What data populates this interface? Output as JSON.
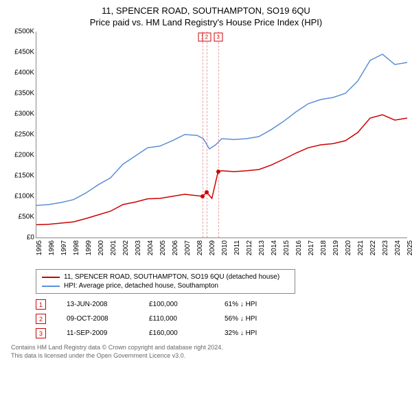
{
  "chart": {
    "type": "line",
    "title_main": "11, SPENCER ROAD, SOUTHAMPTON, SO19 6QU",
    "title_sub": "Price paid vs. HM Land Registry's House Price Index (HPI)",
    "title_fontsize": 13,
    "background_color": "#ffffff",
    "axis_color": "#888888",
    "label_fontsize": 10,
    "ylim": [
      0,
      500000
    ],
    "ytick_step": 50000,
    "y_ticks": [
      "£0",
      "£50K",
      "£100K",
      "£150K",
      "£200K",
      "£250K",
      "£300K",
      "£350K",
      "£400K",
      "£450K",
      "£500K"
    ],
    "xlim": [
      1995,
      2025
    ],
    "x_ticks": [
      "1995",
      "1996",
      "1997",
      "1998",
      "1999",
      "2000",
      "2001",
      "2002",
      "2003",
      "2004",
      "2005",
      "2006",
      "2007",
      "2008",
      "2009",
      "2010",
      "2011",
      "2012",
      "2013",
      "2014",
      "2015",
      "2016",
      "2017",
      "2018",
      "2019",
      "2020",
      "2021",
      "2022",
      "2023",
      "2024",
      "2025"
    ],
    "series": {
      "property": {
        "label": "11, SPENCER ROAD, SOUTHAMPTON, SO19 6QU (detached house)",
        "color": "#cc0000",
        "line_width": 1.5,
        "points": [
          [
            1995,
            31000
          ],
          [
            1996,
            32000
          ],
          [
            1997,
            35000
          ],
          [
            1998,
            38000
          ],
          [
            1999,
            46000
          ],
          [
            2000,
            55000
          ],
          [
            2001,
            64000
          ],
          [
            2002,
            80000
          ],
          [
            2003,
            86000
          ],
          [
            2004,
            94000
          ],
          [
            2005,
            95000
          ],
          [
            2006,
            100000
          ],
          [
            2007,
            105000
          ],
          [
            2008.45,
            100000
          ],
          [
            2008.77,
            110000
          ],
          [
            2009.2,
            95000
          ],
          [
            2009.7,
            160000
          ],
          [
            2010,
            162000
          ],
          [
            2011,
            160000
          ],
          [
            2012,
            162000
          ],
          [
            2013,
            165000
          ],
          [
            2014,
            176000
          ],
          [
            2015,
            190000
          ],
          [
            2016,
            205000
          ],
          [
            2017,
            218000
          ],
          [
            2018,
            225000
          ],
          [
            2019,
            228000
          ],
          [
            2020,
            235000
          ],
          [
            2021,
            255000
          ],
          [
            2022,
            290000
          ],
          [
            2023,
            298000
          ],
          [
            2024,
            285000
          ],
          [
            2025,
            290000
          ]
        ]
      },
      "hpi": {
        "label": "HPI: Average price, detached house, Southampton",
        "color": "#5b8fd6",
        "line_width": 1.5,
        "points": [
          [
            1995,
            78000
          ],
          [
            1996,
            80000
          ],
          [
            1997,
            85000
          ],
          [
            1998,
            92000
          ],
          [
            1999,
            108000
          ],
          [
            2000,
            128000
          ],
          [
            2001,
            145000
          ],
          [
            2002,
            178000
          ],
          [
            2003,
            198000
          ],
          [
            2004,
            218000
          ],
          [
            2005,
            222000
          ],
          [
            2006,
            235000
          ],
          [
            2007,
            250000
          ],
          [
            2008,
            248000
          ],
          [
            2008.5,
            240000
          ],
          [
            2009,
            215000
          ],
          [
            2009.5,
            225000
          ],
          [
            2010,
            240000
          ],
          [
            2011,
            238000
          ],
          [
            2012,
            240000
          ],
          [
            2013,
            245000
          ],
          [
            2014,
            262000
          ],
          [
            2015,
            282000
          ],
          [
            2016,
            305000
          ],
          [
            2017,
            325000
          ],
          [
            2018,
            335000
          ],
          [
            2019,
            340000
          ],
          [
            2020,
            350000
          ],
          [
            2021,
            380000
          ],
          [
            2022,
            430000
          ],
          [
            2023,
            445000
          ],
          [
            2024,
            420000
          ],
          [
            2025,
            425000
          ]
        ]
      }
    },
    "sale_markers": [
      {
        "n": "1",
        "date": "13-JUN-2008",
        "price": "£100,000",
        "delta": "61% ↓ HPI",
        "x": 2008.45,
        "y": 100000
      },
      {
        "n": "2",
        "date": "09-OCT-2008",
        "price": "£110,000",
        "delta": "56% ↓ HPI",
        "x": 2008.77,
        "y": 110000
      },
      {
        "n": "3",
        "date": "11-SEP-2009",
        "price": "£160,000",
        "delta": "32% ↓ HPI",
        "x": 2009.7,
        "y": 160000
      }
    ],
    "marker_border_color": "#cc0000",
    "marker_bg_color": "#ffffff",
    "vline_color": "#e8a0a0",
    "dot_color": "#cc0000"
  },
  "footer": {
    "line1": "Contains HM Land Registry data © Crown copyright and database right 2024.",
    "line2": "This data is licensed under the Open Government Licence v3.0.",
    "color": "#666666"
  }
}
